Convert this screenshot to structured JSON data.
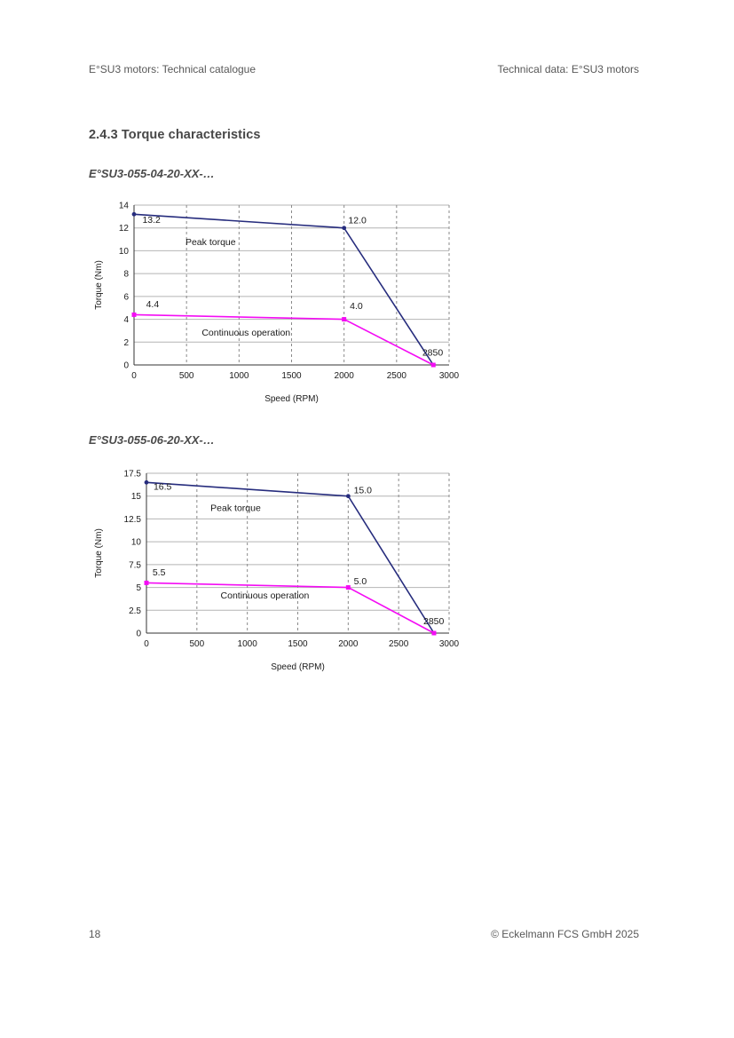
{
  "page": {
    "header_left": "E°SU3 motors: Technical catalogue",
    "header_right": "Technical data: E°SU3 motors",
    "section_title": "2.4.3 Torque characteristics",
    "footer_page_number": "18",
    "footer_copyright": "© Eckelmann FCS GmbH 2025"
  },
  "figures": [
    {
      "caption": "E°SU3-055-04-20-XX-…"
    },
    {
      "caption": "E°SU3-055-06-20-XX-…"
    }
  ],
  "colors": {
    "peak_torque_line": "#262c7d",
    "continuous_line": "#f40cf4",
    "grid_horizontal": "#b4b4b4",
    "grid_vertical": "#8a8a8a",
    "axis": "#333333",
    "chart_text": "#1a1a1a"
  },
  "chart_data": [
    {
      "type": "line",
      "title": "",
      "xlabel": "Speed (RPM)",
      "ylabel": "Torque (Nm)",
      "xlim": [
        0,
        3000
      ],
      "xticks": [
        0,
        500,
        1000,
        1500,
        2000,
        2500,
        3000
      ],
      "ylim": [
        0,
        14
      ],
      "yticks": [
        0,
        2,
        4,
        6,
        8,
        10,
        12,
        14
      ],
      "grid": true,
      "legend_position": "none",
      "series": [
        {
          "name": "Peak torque",
          "color": "#262c7d",
          "marker": "circle",
          "points": [
            [
              0,
              13.2
            ],
            [
              2000,
              12.0
            ],
            [
              2850,
              0
            ]
          ]
        },
        {
          "name": "Continuous operation",
          "color": "#f40cf4",
          "marker": "square",
          "points": [
            [
              0,
              4.4
            ],
            [
              2000,
              4.0
            ],
            [
              2850,
              0
            ]
          ]
        }
      ],
      "point_labels": [
        {
          "text": "13.2",
          "x": 80,
          "y": 12.45
        },
        {
          "text": "12.0",
          "x": 2040,
          "y": 12.4
        },
        {
          "text": "2850",
          "x": 2745,
          "y": 0.8
        },
        {
          "text": "4.4",
          "x": 115,
          "y": 5.05
        },
        {
          "text": "4.0",
          "x": 2055,
          "y": 4.9
        }
      ],
      "annotations": [
        {
          "text": "Peak torque",
          "x": 490,
          "y": 10.5
        },
        {
          "text": "Continuous operation",
          "x": 645,
          "y": 2.55
        }
      ]
    },
    {
      "type": "line",
      "title": "",
      "xlabel": "Speed (RPM)",
      "ylabel": "Torque (Nm)",
      "xlim": [
        0,
        3000
      ],
      "xticks": [
        0,
        500,
        1000,
        1500,
        2000,
        2500,
        3000
      ],
      "ylim": [
        0,
        17.5
      ],
      "yticks": [
        0,
        2.5,
        5,
        7.5,
        10,
        12.5,
        15,
        17.5
      ],
      "grid": true,
      "legend_position": "none",
      "series": [
        {
          "name": "Peak torque",
          "color": "#262c7d",
          "marker": "circle",
          "points": [
            [
              0,
              16.5
            ],
            [
              2000,
              15.0
            ],
            [
              2850,
              0
            ]
          ]
        },
        {
          "name": "Continuous operation",
          "color": "#f40cf4",
          "marker": "square",
          "points": [
            [
              0,
              5.5
            ],
            [
              2000,
              5.0
            ],
            [
              2850,
              0
            ]
          ]
        }
      ],
      "point_labels": [
        {
          "text": "16.5",
          "x": 70,
          "y": 15.7
        },
        {
          "text": "15.0",
          "x": 2055,
          "y": 15.3
        },
        {
          "text": "2850",
          "x": 2745,
          "y": 0.95
        },
        {
          "text": "5.5",
          "x": 60,
          "y": 6.3
        },
        {
          "text": "5.0",
          "x": 2055,
          "y": 5.35
        }
      ],
      "annotations": [
        {
          "text": "Peak torque",
          "x": 635,
          "y": 13.35
        },
        {
          "text": "Continuous operation",
          "x": 735,
          "y": 3.8
        }
      ]
    }
  ]
}
